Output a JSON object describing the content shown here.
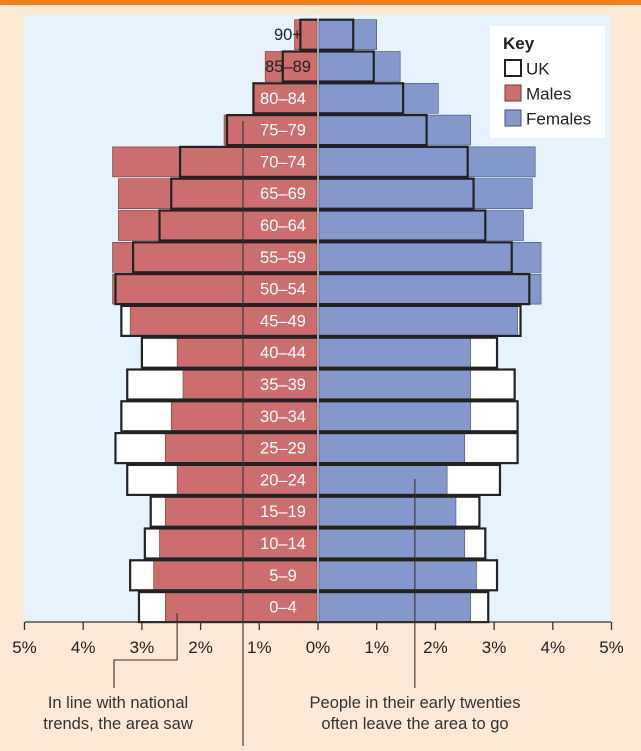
{
  "chart_data": {
    "type": "bar",
    "orientation": "horizontal",
    "subtype": "population-pyramid",
    "categories": [
      "0–4",
      "5–9",
      "10–14",
      "15–19",
      "20–24",
      "25–29",
      "30–34",
      "35–39",
      "40–44",
      "45–49",
      "50–54",
      "55–59",
      "60–64",
      "65–69",
      "70–74",
      "75–79",
      "80–84",
      "85–89",
      "90+"
    ],
    "series": [
      {
        "name": "Males",
        "side": "left",
        "color": "#cc6e6e",
        "values": [
          2.6,
          2.8,
          2.7,
          2.6,
          2.4,
          2.6,
          2.5,
          2.3,
          2.4,
          3.2,
          3.5,
          3.5,
          3.4,
          3.4,
          3.5,
          1.6,
          1.1,
          0.9,
          0.4
        ]
      },
      {
        "name": "Females",
        "side": "right",
        "color": "#8598cc",
        "values": [
          2.6,
          2.7,
          2.5,
          2.35,
          2.2,
          2.5,
          2.6,
          2.6,
          2.6,
          3.4,
          3.8,
          3.8,
          3.5,
          3.65,
          3.7,
          2.6,
          2.05,
          1.4,
          1.0
        ]
      },
      {
        "name": "UK",
        "style": "outline",
        "male": [
          3.05,
          3.2,
          2.95,
          2.85,
          3.25,
          3.45,
          3.35,
          3.25,
          3.0,
          3.35,
          3.45,
          3.15,
          2.7,
          2.5,
          2.35,
          1.55,
          1.1,
          0.6,
          0.3
        ],
        "female": [
          2.9,
          3.05,
          2.85,
          2.75,
          3.1,
          3.4,
          3.4,
          3.35,
          3.05,
          3.45,
          3.6,
          3.3,
          2.85,
          2.65,
          2.55,
          1.85,
          1.45,
          0.95,
          0.6
        ]
      }
    ],
    "xticks": [
      "5%",
      "4%",
      "3%",
      "2%",
      "1%",
      "0%",
      "1%",
      "2%",
      "3%",
      "4%",
      "5%"
    ],
    "xlim": [
      -5,
      5
    ],
    "legend": {
      "title": "Key",
      "position": "top-right",
      "items": [
        "UK",
        "Males",
        "Females"
      ]
    },
    "annotations": [
      {
        "lines": [
          "In line with national",
          "trends, the area saw"
        ],
        "x_value": -2.4,
        "row": "0–4"
      },
      {
        "lines": [
          "People in their early twenties",
          "often leave the area to go"
        ],
        "x_value": 1.65,
        "row": "20–24"
      }
    ]
  },
  "colors": {
    "background": "#fce8d6",
    "plot": "#e6f3fc",
    "accent": "#f07d1a",
    "males": "#cc6e6e",
    "females": "#8598cc",
    "frame": "#222222"
  }
}
